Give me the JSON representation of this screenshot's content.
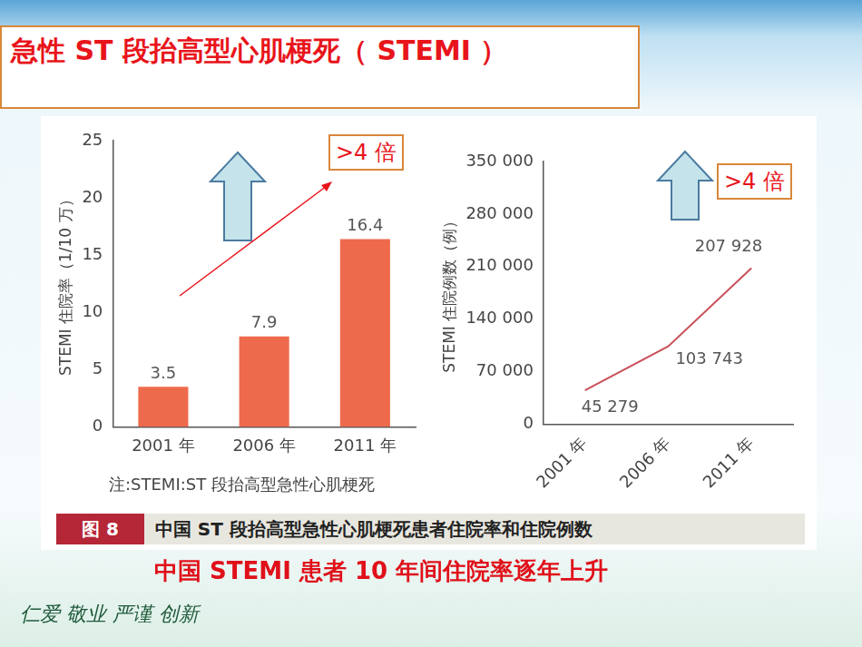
{
  "title": "急性 ST 段抬高型心肌梗死（ STEMI ）",
  "chart_data": [
    {
      "type": "bar",
      "y_label": "STEMI 住院率（1/10 万）",
      "categories": [
        "2001 年",
        "2006 年",
        "2011 年"
      ],
      "values": [
        3.5,
        7.9,
        16.4
      ],
      "color": "#ee6a4c",
      "ylim": [
        0,
        25
      ],
      "yticks": [
        0,
        5,
        10,
        15,
        20,
        25
      ],
      "grid": false,
      "data_labels": true,
      "annotation": ">4 倍"
    },
    {
      "type": "line",
      "y_label": "STEMI 住院例数（例）",
      "categories": [
        "2001 年",
        "2006 年",
        "2011 年"
      ],
      "values": [
        45279,
        103743,
        207928
      ],
      "value_labels": [
        "45 279",
        "103 743",
        "207 928"
      ],
      "color": "#c9505a",
      "marker": "none",
      "ylim": [
        0,
        350000
      ],
      "yticks": [
        0,
        {
          "value": 70000,
          "label": "70 000"
        },
        {
          "value": 140000,
          "label": "140 000"
        },
        {
          "value": 210000,
          "label": "210 000"
        },
        {
          "value": 280000,
          "label": "280 000"
        },
        {
          "value": 350000,
          "label": "350 000"
        }
      ],
      "grid": false,
      "data_labels": true,
      "annotation": ">4 倍"
    }
  ],
  "note": "注:STEMI:ST 段抬高型急性心肌梗死",
  "figure_label": "图 8",
  "caption": "中国 ST 段抬高型急性心肌梗死患者住院率和住院例数",
  "conclusion": "中国 STEMI 患者 10 年间住院率逐年上升",
  "motto": "仁爱 敬业 严谨 创新"
}
